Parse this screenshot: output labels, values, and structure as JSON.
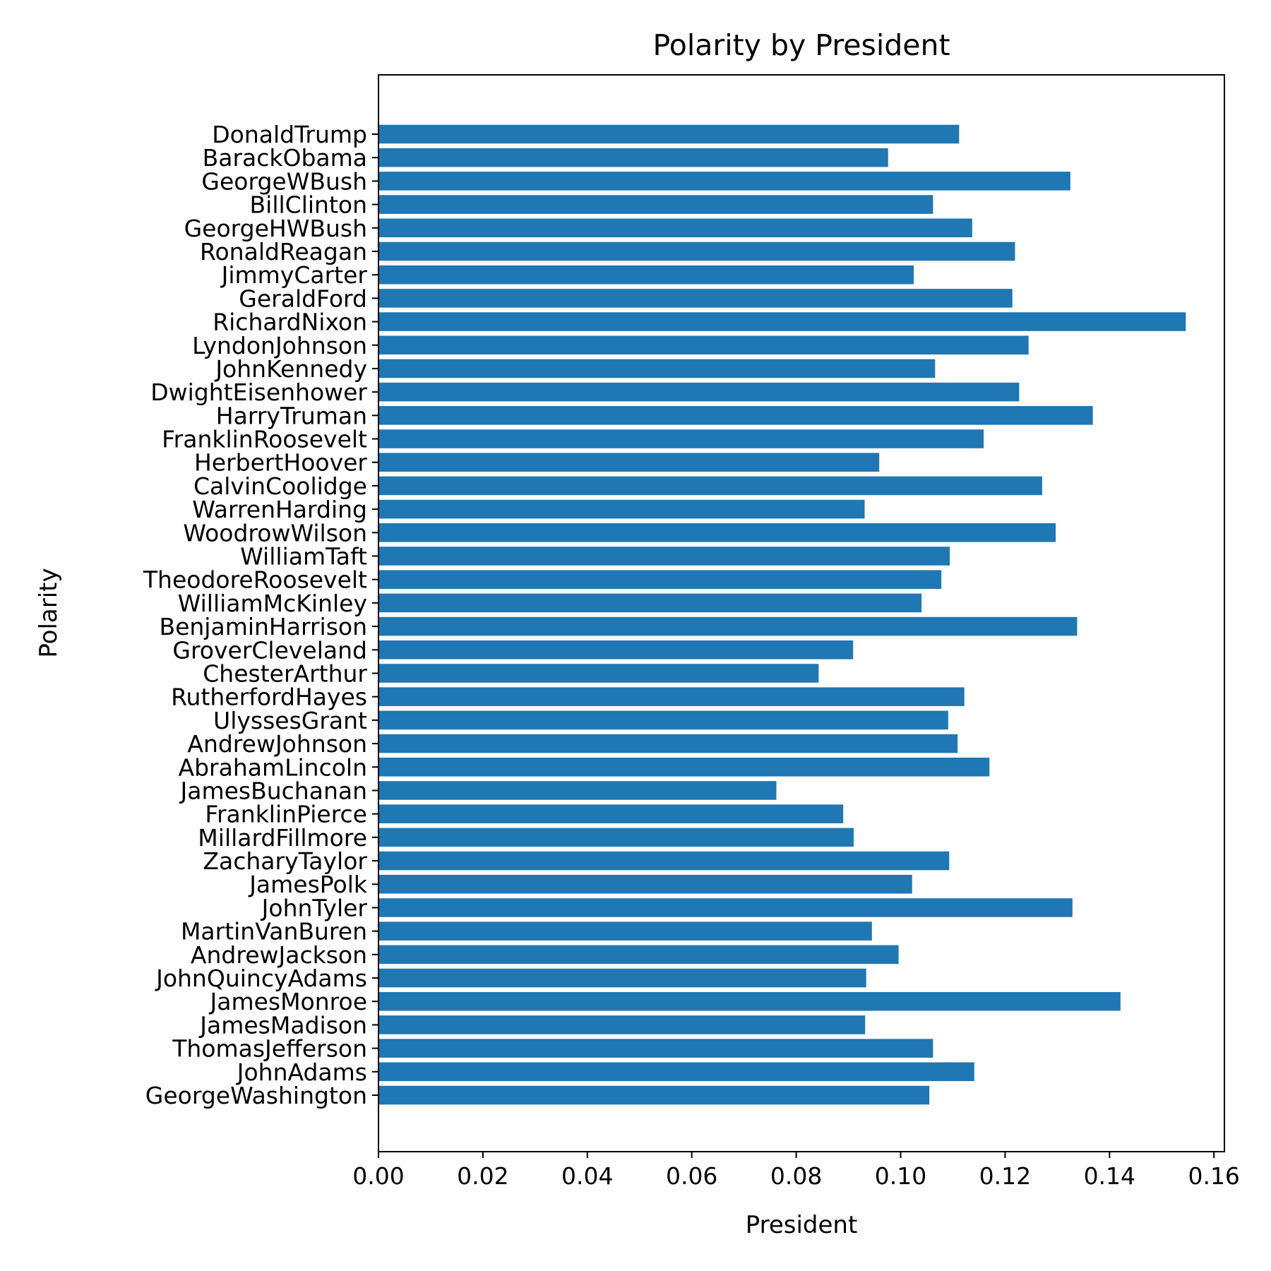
{
  "chart_data": {
    "type": "bar",
    "orientation": "horizontal",
    "title": "Polarity by President",
    "xlabel": "President",
    "ylabel": "Polarity",
    "xlim": [
      0.0,
      0.162
    ],
    "x_ticks": [
      "0.00",
      "0.02",
      "0.04",
      "0.06",
      "0.08",
      "0.10",
      "0.12",
      "0.14",
      "0.16"
    ],
    "grid": false,
    "bar_color": "#1f77b4",
    "categories": [
      "GeorgeWashington",
      "JohnAdams",
      "ThomasJefferson",
      "JamesMadison",
      "JamesMonroe",
      "JohnQuincyAdams",
      "AndrewJackson",
      "MartinVanBuren",
      "JohnTyler",
      "JamesPolk",
      "ZacharyTaylor",
      "MillardFillmore",
      "FranklinPierce",
      "JamesBuchanan",
      "AbrahamLincoln",
      "AndrewJohnson",
      "UlyssesGrant",
      "RutherfordHayes",
      "ChesterArthur",
      "GroverCleveland",
      "BenjaminHarrison",
      "WilliamMcKinley",
      "TheodoreRoosevelt",
      "WilliamTaft",
      "WoodrowWilson",
      "WarrenHarding",
      "CalvinCoolidge",
      "HerbertHoover",
      "FranklinRoosevelt",
      "HarryTruman",
      "DwightEisenhower",
      "JohnKennedy",
      "LyndonJohnson",
      "RichardNixon",
      "GeraldFord",
      "JimmyCarter",
      "RonaldReagan",
      "GeorgeHWBush",
      "BillClinton",
      "GeorgeWBush",
      "BarackObama",
      "DonaldTrump"
    ],
    "values": [
      0.1055,
      0.1141,
      0.1062,
      0.0932,
      0.1421,
      0.0934,
      0.0996,
      0.0945,
      0.1329,
      0.1022,
      0.1093,
      0.091,
      0.089,
      0.0762,
      0.117,
      0.1109,
      0.1091,
      0.1122,
      0.0843,
      0.0909,
      0.1338,
      0.104,
      0.1078,
      0.1094,
      0.1297,
      0.0931,
      0.1271,
      0.0959,
      0.1159,
      0.1368,
      0.1227,
      0.1066,
      0.1245,
      0.1546,
      0.1214,
      0.1025,
      0.1219,
      0.1137,
      0.1062,
      0.1325,
      0.0976,
      0.1112
    ]
  }
}
